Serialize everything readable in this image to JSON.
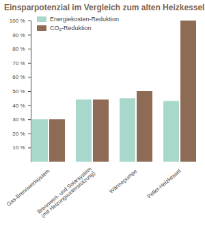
{
  "chart_data": {
    "type": "bar",
    "title": "Einsparpotenzial im Vergleich zum alten Heizkessel",
    "categories": [
      "Gas-Brennwertsystem",
      "Brennwert- und Solarsystem (mit Heizungsunterstützung)",
      "Wärmepumpe",
      "Pellet-Heizkessel"
    ],
    "series": [
      {
        "name": "Energiekosten-Reduktion",
        "color": "#a8d8cc",
        "values": [
          30,
          44,
          45,
          43
        ]
      },
      {
        "name": "CO₂-Reduktion",
        "color": "#8e6b54",
        "values": [
          30,
          44,
          50,
          100
        ]
      }
    ],
    "ylim": [
      0,
      100
    ],
    "yticks": [
      {
        "value": 10,
        "label": "10 %"
      },
      {
        "value": 20,
        "label": "20 %"
      },
      {
        "value": 30,
        "label": "30 %"
      },
      {
        "value": 40,
        "label": "40 %"
      },
      {
        "value": 50,
        "label": "50 %"
      },
      {
        "value": 60,
        "label": "60 %"
      },
      {
        "value": 70,
        "label": "70 %"
      },
      {
        "value": 80,
        "label": "80 %"
      },
      {
        "value": 90,
        "label": "90 %"
      },
      {
        "value": 100,
        "label": "100 %"
      }
    ],
    "grid": false,
    "legend": "upper left"
  }
}
